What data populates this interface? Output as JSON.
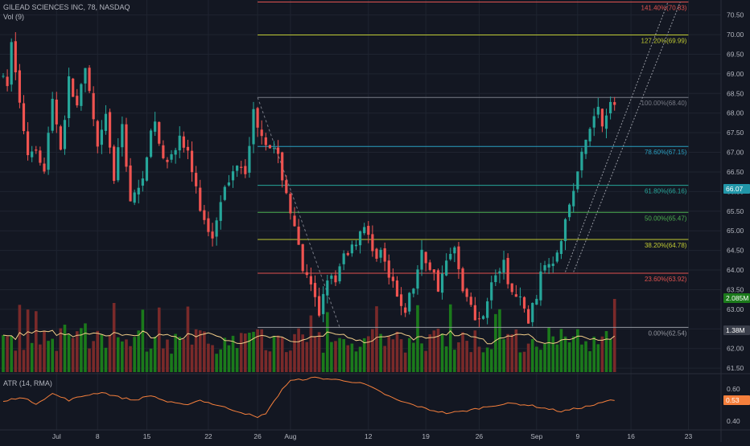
{
  "header": {
    "symbol_line": "GILEAD SCIENCES INC, 78, NASDAQ",
    "volume_label": "Vol (9)",
    "atr_label": "ATR (14, RMA)"
  },
  "colors": {
    "background": "#131722",
    "grid": "#1f2430",
    "up": "#26a69a",
    "down": "#ef5350",
    "volume_up": "#1b7a1b",
    "volume_down": "#7a2a2a",
    "volume_ma": "#f5d08a",
    "atr_line": "#f57f3c",
    "axis_text": "#b2b5be",
    "fib_100": "#787b86",
    "fib_786": "#2a9fc0",
    "fib_618": "#26a69a",
    "fib_50": "#4caf50",
    "fib_382": "#c0ca33",
    "fib_236": "#e0524f",
    "fib_1272": "#c0ca33",
    "fib_1414": "#e0524f",
    "fib_0": "#9598a1",
    "last_price_badge": "#2196a8",
    "volume_badge": "#1b7a1b",
    "atr_badge": "#f57f3c"
  },
  "chart_data": [
    {
      "type": "candlestick",
      "name": "",
      "ylim": [
        61.4,
        70.8
      ],
      "y_ticks": [
        "61.50",
        "62.00",
        "62.50",
        "63.00",
        "63.50",
        "64.00",
        "64.50",
        "65.00",
        "65.50",
        "66.00",
        "66.50",
        "67.00",
        "67.50",
        "68.00",
        "68.50",
        "69.00",
        "69.50",
        "70.00",
        "70.50"
      ],
      "x_ticks": [
        {
          "label": "Jul",
          "index": 13
        },
        {
          "label": "8",
          "index": 23
        },
        {
          "label": "15",
          "index": 35
        },
        {
          "label": "22",
          "index": 50
        },
        {
          "label": "26",
          "index": 62
        },
        {
          "label": "Aug",
          "index": 70
        },
        {
          "label": "12",
          "index": 89
        },
        {
          "label": "19",
          "index": 103
        },
        {
          "label": "26",
          "index": 116
        },
        {
          "label": "Sep",
          "index": 130
        },
        {
          "label": "9",
          "index": 140
        },
        {
          "label": "16",
          "index": 153
        },
        {
          "label": "23",
          "index": 167
        }
      ],
      "last_price": "66.07",
      "anchors": [
        [
          0,
          69.0
        ],
        [
          2,
          68.6
        ],
        [
          3,
          69.9
        ],
        [
          5,
          68.2
        ],
        [
          7,
          67.0
        ],
        [
          9,
          67.2
        ],
        [
          11,
          66.5
        ],
        [
          13,
          68.4
        ],
        [
          15,
          67.1
        ],
        [
          17,
          68.8
        ],
        [
          19,
          68.2
        ],
        [
          21,
          69.0
        ],
        [
          22,
          68.5
        ],
        [
          24,
          67.0
        ],
        [
          26,
          67.9
        ],
        [
          28,
          66.3
        ],
        [
          30,
          67.7
        ],
        [
          32,
          65.8
        ],
        [
          34,
          66.0
        ],
        [
          36,
          67.0
        ],
        [
          38,
          67.8
        ],
        [
          40,
          66.7
        ],
        [
          42,
          67.1
        ],
        [
          44,
          67.3
        ],
        [
          46,
          67.0
        ],
        [
          48,
          66.0
        ],
        [
          50,
          65.2
        ],
        [
          52,
          64.9
        ],
        [
          54,
          65.9
        ],
        [
          56,
          66.2
        ],
        [
          58,
          66.8
        ],
        [
          60,
          66.6
        ],
        [
          62,
          68.0
        ],
        [
          64,
          67.5
        ],
        [
          66,
          67.2
        ],
        [
          68,
          66.8
        ],
        [
          70,
          66.0
        ],
        [
          72,
          65.0
        ],
        [
          74,
          64.0
        ],
        [
          76,
          63.5
        ],
        [
          78,
          62.9
        ],
        [
          80,
          63.9
        ],
        [
          82,
          63.6
        ],
        [
          84,
          64.4
        ],
        [
          86,
          64.6
        ],
        [
          88,
          65.0
        ],
        [
          89,
          65.2
        ],
        [
          91,
          64.4
        ],
        [
          93,
          64.5
        ],
        [
          95,
          63.8
        ],
        [
          97,
          63.3
        ],
        [
          99,
          63.0
        ],
        [
          101,
          63.6
        ],
        [
          103,
          64.4
        ],
        [
          105,
          64.1
        ],
        [
          107,
          63.6
        ],
        [
          109,
          64.2
        ],
        [
          111,
          64.5
        ],
        [
          113,
          63.6
        ],
        [
          115,
          63.0
        ],
        [
          117,
          62.7
        ],
        [
          119,
          63.3
        ],
        [
          121,
          63.9
        ],
        [
          123,
          64.1
        ],
        [
          125,
          63.4
        ],
        [
          127,
          63.2
        ],
        [
          129,
          62.7
        ],
        [
          131,
          63.4
        ],
        [
          133,
          64.2
        ],
        [
          135,
          64.3
        ],
        [
          137,
          64.9
        ],
        [
          139,
          65.6
        ],
        [
          141,
          66.5
        ],
        [
          143,
          67.3
        ],
        [
          145,
          67.9
        ],
        [
          146,
          68.2
        ],
        [
          147,
          67.8
        ],
        [
          148,
          68.1
        ],
        [
          149,
          68.2
        ]
      ],
      "fib_levels": [
        {
          "label": "141.40%(70.83)",
          "value": 70.83,
          "color_key": "fib_1414"
        },
        {
          "label": "127.20%(69.99)",
          "value": 69.99,
          "color_key": "fib_1272"
        },
        {
          "label": "100.00%(68.40)",
          "value": 68.4,
          "color_key": "fib_100"
        },
        {
          "label": "78.60%(67.15)",
          "value": 67.15,
          "color_key": "fib_786"
        },
        {
          "label": "61.80%(66.16)",
          "value": 66.16,
          "color_key": "fib_618"
        },
        {
          "label": "50.00%(65.47)",
          "value": 65.47,
          "color_key": "fib_50"
        },
        {
          "label": "38.20%(64.78)",
          "value": 64.78,
          "color_key": "fib_382"
        },
        {
          "label": "23.60%(63.92)",
          "value": 63.92,
          "color_key": "fib_236"
        },
        {
          "label": "0.00%(62.54)",
          "value": 62.54,
          "color_key": "fib_0"
        }
      ],
      "fib_start_index": 62,
      "fib_end_index": 167,
      "channel": {
        "x1": 137,
        "y1": 63.95,
        "x2": 162,
        "y2": 70.83,
        "x1b": 139,
        "y1b": 63.95,
        "x2b": 165,
        "y2b": 70.83
      }
    },
    {
      "type": "bar",
      "name": "",
      "last_value_label": "2.085M",
      "hidden_value_label": "1.38M",
      "avg_level": 0.55,
      "max_level": 1.0
    },
    {
      "type": "line",
      "name": "",
      "ylim": [
        0.36,
        0.68
      ],
      "y_ticks": [
        "0.40",
        "0.60"
      ],
      "last_value": "0.53",
      "anchors": [
        [
          0,
          0.52
        ],
        [
          4,
          0.55
        ],
        [
          8,
          0.51
        ],
        [
          12,
          0.57
        ],
        [
          16,
          0.53
        ],
        [
          20,
          0.56
        ],
        [
          24,
          0.58
        ],
        [
          28,
          0.55
        ],
        [
          32,
          0.53
        ],
        [
          36,
          0.56
        ],
        [
          40,
          0.52
        ],
        [
          44,
          0.5
        ],
        [
          48,
          0.53
        ],
        [
          52,
          0.5
        ],
        [
          56,
          0.47
        ],
        [
          60,
          0.44
        ],
        [
          62,
          0.42
        ],
        [
          64,
          0.45
        ],
        [
          66,
          0.52
        ],
        [
          68,
          0.6
        ],
        [
          70,
          0.65
        ],
        [
          73,
          0.66
        ],
        [
          76,
          0.67
        ],
        [
          80,
          0.66
        ],
        [
          84,
          0.65
        ],
        [
          88,
          0.63
        ],
        [
          92,
          0.58
        ],
        [
          96,
          0.53
        ],
        [
          100,
          0.5
        ],
        [
          104,
          0.47
        ],
        [
          108,
          0.45
        ],
        [
          112,
          0.46
        ],
        [
          116,
          0.48
        ],
        [
          120,
          0.5
        ],
        [
          124,
          0.51
        ],
        [
          128,
          0.5
        ],
        [
          132,
          0.48
        ],
        [
          136,
          0.46
        ],
        [
          140,
          0.48
        ],
        [
          144,
          0.5
        ],
        [
          148,
          0.53
        ],
        [
          150,
          0.53
        ]
      ]
    }
  ]
}
